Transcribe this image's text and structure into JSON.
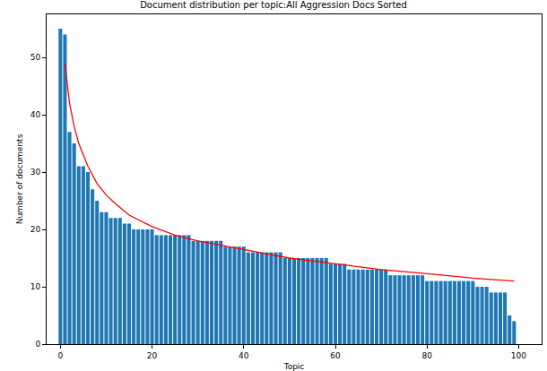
{
  "chart_data": {
    "type": "bar",
    "title": "Document distribution per topic:All Aggression Docs Sorted",
    "x_label": "Topic",
    "y_label": "Number of documents",
    "xlim": [
      -3,
      105
    ],
    "xticks": [
      0,
      20,
      40,
      60,
      80,
      100
    ],
    "ylim": [
      0,
      57.5
    ],
    "yticks": [
      0,
      10,
      20,
      30,
      40,
      50
    ],
    "grid": false,
    "series": [
      {
        "type": "bar",
        "color": "#1f77b4",
        "x": [
          0,
          1,
          2,
          3,
          4,
          5,
          6,
          7,
          8,
          9,
          10,
          11,
          12,
          13,
          14,
          15,
          16,
          17,
          18,
          19,
          20,
          21,
          22,
          23,
          24,
          25,
          26,
          27,
          28,
          29,
          30,
          31,
          32,
          33,
          34,
          35,
          36,
          37,
          38,
          39,
          40,
          41,
          42,
          43,
          44,
          45,
          46,
          47,
          48,
          49,
          50,
          51,
          52,
          53,
          54,
          55,
          56,
          57,
          58,
          59,
          60,
          61,
          62,
          63,
          64,
          65,
          66,
          67,
          68,
          69,
          70,
          71,
          72,
          73,
          74,
          75,
          76,
          77,
          78,
          79,
          80,
          81,
          82,
          83,
          84,
          85,
          86,
          87,
          88,
          89,
          90,
          91,
          92,
          93,
          94,
          95,
          96,
          97,
          98,
          99
        ],
        "values": [
          55,
          54,
          37,
          35,
          31,
          31,
          30,
          27,
          25,
          23,
          23,
          22,
          22,
          22,
          21,
          21,
          20,
          20,
          20,
          20,
          20,
          19,
          19,
          19,
          19,
          19,
          19,
          19,
          19,
          18,
          18,
          18,
          18,
          18,
          18,
          18,
          17,
          17,
          17,
          17,
          17,
          16,
          16,
          16,
          16,
          16,
          16,
          16,
          16,
          15,
          15,
          15,
          15,
          15,
          15,
          15,
          15,
          15,
          15,
          14,
          14,
          14,
          14,
          13,
          13,
          13,
          13,
          13,
          13,
          13,
          13,
          13,
          12,
          12,
          12,
          12,
          12,
          12,
          12,
          12,
          11,
          11,
          11,
          11,
          11,
          11,
          11,
          11,
          11,
          11,
          11,
          10,
          10,
          10,
          9,
          9,
          9,
          9,
          5,
          4
        ]
      },
      {
        "type": "line",
        "color": "red",
        "x": [
          1,
          2,
          3,
          4,
          5,
          6,
          8,
          10,
          12,
          15,
          20,
          25,
          30,
          40,
          50,
          60,
          70,
          80,
          90,
          99
        ],
        "values": [
          49,
          42,
          38,
          35,
          33,
          31,
          28,
          26,
          24.5,
          22.5,
          20.5,
          19,
          18,
          16.5,
          15,
          14,
          13,
          12.3,
          11.5,
          11
        ]
      }
    ]
  }
}
